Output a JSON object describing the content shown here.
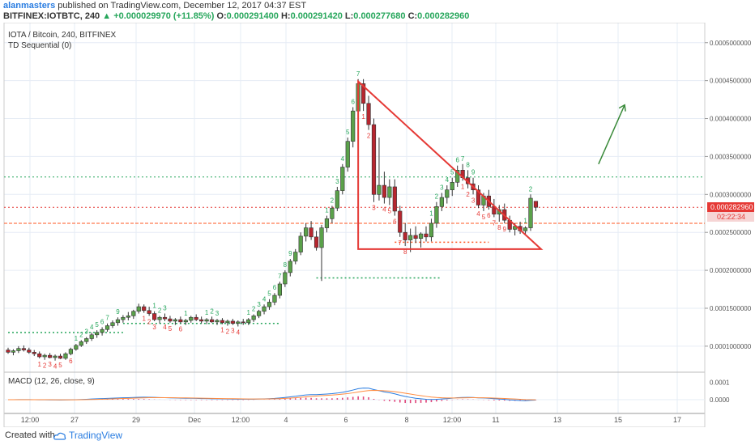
{
  "header": {
    "author": "alanmasters",
    "published_text": "published on TradingView.com, December 12, 2017 04:37 EST",
    "symbol_line": "BITFINEX:IOTBTC, 240",
    "change": "+0.000029970 (+11.85%)",
    "open_label": "O:",
    "open": "0.000291400",
    "high_label": "H:",
    "high": "0.000291420",
    "low_label": "L:",
    "low": "0.000277680",
    "close_label": "C:",
    "close": "0.000282960"
  },
  "legend": {
    "pair": "IOTA / Bitcoin, 240, BITFINEX",
    "indicator": "TD Sequential (0)",
    "macd": "MACD (12, 26, close, 9)"
  },
  "price_badge": {
    "price": "0.000282960",
    "countdown": "02:22:34"
  },
  "chart_data": [
    {
      "type": "candlestick",
      "title": "IOTA / Bitcoin, 240, BITFINEX",
      "y_ticks": [
        "0.0001000000",
        "0.0001500000",
        "0.0002000000",
        "0.0002500000",
        "0.0003000000",
        "0.0003500000",
        "0.0004000000",
        "0.0004500000",
        "0.0005000000"
      ],
      "ylim": [
        7e-05,
        0.00052
      ],
      "x_ticks": [
        "12:00",
        "27",
        "29",
        "Dec",
        "12:00",
        "4",
        "6",
        "8",
        "12:00",
        "11",
        "13",
        "15",
        "17"
      ],
      "last_price": 0.00028296,
      "ohlc": [
        [
          9.5e-05,
          9.8e-05,
          9e-05,
          9.2e-05
        ],
        [
          9.2e-05,
          9.6e-05,
          8.8e-05,
          9.4e-05
        ],
        [
          9.4e-05,
          0.0001,
          9.1e-05,
          9.7e-05
        ],
        [
          9.7e-05,
          0.000101,
          9.3e-05,
          9.5e-05
        ],
        [
          9.5e-05,
          9.8e-05,
          9e-05,
          9.2e-05
        ],
        [
          9.2e-05,
          9.5e-05,
          8.7e-05,
          9e-05
        ],
        [
          9e-05,
          9.3e-05,
          8.4e-05,
          8.6e-05
        ],
        [
          8.6e-05,
          9e-05,
          8.2e-05,
          8.8e-05
        ],
        [
          8.8e-05,
          9.1e-05,
          8.4e-05,
          8.5e-05
        ],
        [
          8.5e-05,
          8.9e-05,
          8.1e-05,
          8.7e-05
        ],
        [
          8.7e-05,
          9e-05,
          8.3e-05,
          8.4e-05
        ],
        [
          8.4e-05,
          9.2e-05,
          8.2e-05,
          9e-05
        ],
        [
          9e-05,
          9.8e-05,
          8.8e-05,
          9.6e-05
        ],
        [
          9.6e-05,
          0.000103,
          9.4e-05,
          0.000101
        ],
        [
          0.000101,
          0.000108,
          9.9e-05,
          0.000106
        ],
        [
          0.000106,
          0.000112,
          0.000103,
          0.00011
        ],
        [
          0.00011,
          0.000118,
          0.000107,
          0.000115
        ],
        [
          0.000115,
          0.000121,
          0.000111,
          0.000118
        ],
        [
          0.000118,
          0.000125,
          0.000114,
          0.000122
        ],
        [
          0.000122,
          0.00013,
          0.000119,
          0.000127
        ],
        [
          0.000127,
          0.000134,
          0.000124,
          0.000131
        ],
        [
          0.000131,
          0.000138,
          0.000127,
          0.000135
        ],
        [
          0.000135,
          0.000141,
          0.000131,
          0.000138
        ],
        [
          0.000138,
          0.000145,
          0.000134,
          0.00014
        ],
        [
          0.00014,
          0.000148,
          0.000136,
          0.000146
        ],
        [
          0.000146,
          0.000156,
          0.000143,
          0.000152
        ],
        [
          0.000152,
          0.000155,
          0.000144,
          0.000147
        ],
        [
          0.000147,
          0.000152,
          0.00014,
          0.000143
        ],
        [
          0.000143,
          0.000146,
          0.000133,
          0.000135
        ],
        [
          0.000135,
          0.00014,
          0.00013,
          0.000138
        ],
        [
          0.000138,
          0.000143,
          0.000133,
          0.000136
        ],
        [
          0.000136,
          0.00014,
          0.000131,
          0.000133
        ],
        [
          0.000133,
          0.000137,
          0.000128,
          0.000135
        ],
        [
          0.000135,
          0.000139,
          0.00013,
          0.000132
        ],
        [
          0.000132,
          0.000136,
          0.000128,
          0.000134
        ],
        [
          0.000134,
          0.00014,
          0.000131,
          0.000138
        ],
        [
          0.000138,
          0.000142,
          0.000133,
          0.000135
        ],
        [
          0.000135,
          0.000139,
          0.00013,
          0.000133
        ],
        [
          0.000133,
          0.000137,
          0.000129,
          0.000135
        ],
        [
          0.000135,
          0.000139,
          0.000131,
          0.000132
        ],
        [
          0.000132,
          0.000136,
          0.000128,
          0.000134
        ],
        [
          0.000134,
          0.000137,
          0.000129,
          0.000131
        ],
        [
          0.000131,
          0.000135,
          0.000127,
          0.000133
        ],
        [
          0.000133,
          0.000136,
          0.000128,
          0.00013
        ],
        [
          0.00013,
          0.000134,
          0.000126,
          0.000132
        ],
        [
          0.000132,
          0.000136,
          0.000128,
          0.000131
        ],
        [
          0.000131,
          0.000137,
          0.000128,
          0.000135
        ],
        [
          0.000135,
          0.000142,
          0.000132,
          0.00014
        ],
        [
          0.00014,
          0.000148,
          0.000137,
          0.000146
        ],
        [
          0.000146,
          0.000155,
          0.000142,
          0.000152
        ],
        [
          0.000152,
          0.000162,
          0.000148,
          0.000158
        ],
        [
          0.000158,
          0.00017,
          0.000154,
          0.000167
        ],
        [
          0.000167,
          0.000185,
          0.000163,
          0.000182
        ],
        [
          0.000182,
          0.0002,
          0.000178,
          0.000197
        ],
        [
          0.000197,
          0.000215,
          0.000192,
          0.000212
        ],
        [
          0.000212,
          0.000228,
          0.000208,
          0.000224
        ],
        [
          0.000224,
          0.00025,
          0.00022,
          0.000245
        ],
        [
          0.000245,
          0.000262,
          0.000238,
          0.000256
        ],
        [
          0.000256,
          0.000265,
          0.00024,
          0.000244
        ],
        [
          0.000244,
          0.000252,
          0.000226,
          0.00023
        ],
        [
          0.00023,
          0.00026,
          0.000186,
          0.000256
        ],
        [
          0.000256,
          0.000272,
          0.00025,
          0.000268
        ],
        [
          0.000268,
          0.000285,
          0.000262,
          0.000282
        ],
        [
          0.000282,
          0.00031,
          0.000278,
          0.000305
        ],
        [
          0.000305,
          0.00034,
          0.0003,
          0.000336
        ],
        [
          0.000336,
          0.000375,
          0.00033,
          0.00037
        ],
        [
          0.00037,
          0.000415,
          0.000362,
          0.00041
        ],
        [
          0.00041,
          0.000452,
          0.0004,
          0.000446
        ],
        [
          0.000446,
          0.000452,
          0.00041,
          0.00042
        ],
        [
          0.00042,
          0.00043,
          0.000385,
          0.000392
        ],
        [
          0.000392,
          0.0004,
          0.00029,
          0.0003
        ],
        [
          0.0003,
          0.000375,
          0.000292,
          0.000312
        ],
        [
          0.000312,
          0.00033,
          0.000288,
          0.000296
        ],
        [
          0.000296,
          0.00032,
          0.000286,
          0.00031
        ],
        [
          0.00031,
          0.00032,
          0.000272,
          0.000278
        ],
        [
          0.000278,
          0.000285,
          0.000244,
          0.00025
        ],
        [
          0.00025,
          0.000262,
          0.000232,
          0.00024
        ],
        [
          0.00024,
          0.000255,
          0.000224,
          0.000246
        ],
        [
          0.000246,
          0.000258,
          0.000236,
          0.000242
        ],
        [
          0.000242,
          0.00025,
          0.00023,
          0.000248
        ],
        [
          0.000248,
          0.000258,
          0.000238,
          0.000244
        ],
        [
          0.000244,
          0.000268,
          0.000238,
          0.000262
        ],
        [
          0.000262,
          0.00029,
          0.000256,
          0.000284
        ],
        [
          0.000284,
          0.000302,
          0.000278,
          0.000296
        ],
        [
          0.000296,
          0.000312,
          0.000288,
          0.000306
        ],
        [
          0.000306,
          0.000322,
          0.000298,
          0.000316
        ],
        [
          0.000316,
          0.000338,
          0.00031,
          0.000332
        ],
        [
          0.000332,
          0.00034,
          0.000318,
          0.000322
        ],
        [
          0.000322,
          0.000332,
          0.000308,
          0.000314
        ],
        [
          0.000314,
          0.000322,
          0.0003,
          0.000306
        ],
        [
          0.000306,
          0.000312,
          0.000282,
          0.000286
        ],
        [
          0.000286,
          0.000302,
          0.000278,
          0.000298
        ],
        [
          0.000298,
          0.000306,
          0.00028,
          0.000284
        ],
        [
          0.000284,
          0.000294,
          0.00027,
          0.000274
        ],
        [
          0.000274,
          0.000286,
          0.000264,
          0.00028
        ],
        [
          0.00028,
          0.000288,
          0.000262,
          0.000266
        ],
        [
          0.000266,
          0.000272,
          0.00025,
          0.000254
        ],
        [
          0.000254,
          0.000262,
          0.000246,
          0.000258
        ],
        [
          0.000258,
          0.000264,
          0.000248,
          0.000252
        ],
        [
          0.000252,
          0.000258,
          0.000246,
          0.000256
        ],
        [
          0.000256,
          0.0003,
          0.000252,
          0.000295
        ],
        [
          0.000291,
          0.000291,
          0.000278,
          0.000283
        ]
      ],
      "horizontal_levels": [
        {
          "price": 0.000323,
          "color": "#26a65b",
          "style": "dotted"
        },
        {
          "price": 0.000283,
          "color": "#e53935",
          "style": "dotted"
        },
        {
          "price": 0.000262,
          "color": "#ff5722",
          "style": "dashed"
        }
      ],
      "triangle": [
        [
          67,
          0.000449
        ],
        [
          102,
          0.000228
        ],
        [
          67,
          0.000228
        ]
      ],
      "arrow": [
        [
          113,
          0.00034
        ],
        [
          118,
          0.000418
        ]
      ],
      "td_buy_counts": [
        "1",
        "2",
        "3",
        "4",
        "5",
        "6",
        "7",
        "8",
        "9"
      ],
      "td_sell_counts": [
        "1",
        "2",
        "3",
        "4",
        "5",
        "6",
        "7",
        "8",
        "9"
      ]
    },
    {
      "type": "line",
      "title": "MACD (12, 26, close, 9)",
      "y_ticks": [
        "0.0001",
        "0.0000"
      ],
      "ylim": [
        -7e-05,
        0.00014
      ],
      "series": [
        {
          "name": "MACD",
          "color": "#2a7de1"
        },
        {
          "name": "Signal",
          "color": "#ff8a3d"
        }
      ],
      "histogram_color": "#e0457b"
    }
  ],
  "footer": {
    "created_with": "Created with",
    "brand": "TradingView"
  }
}
